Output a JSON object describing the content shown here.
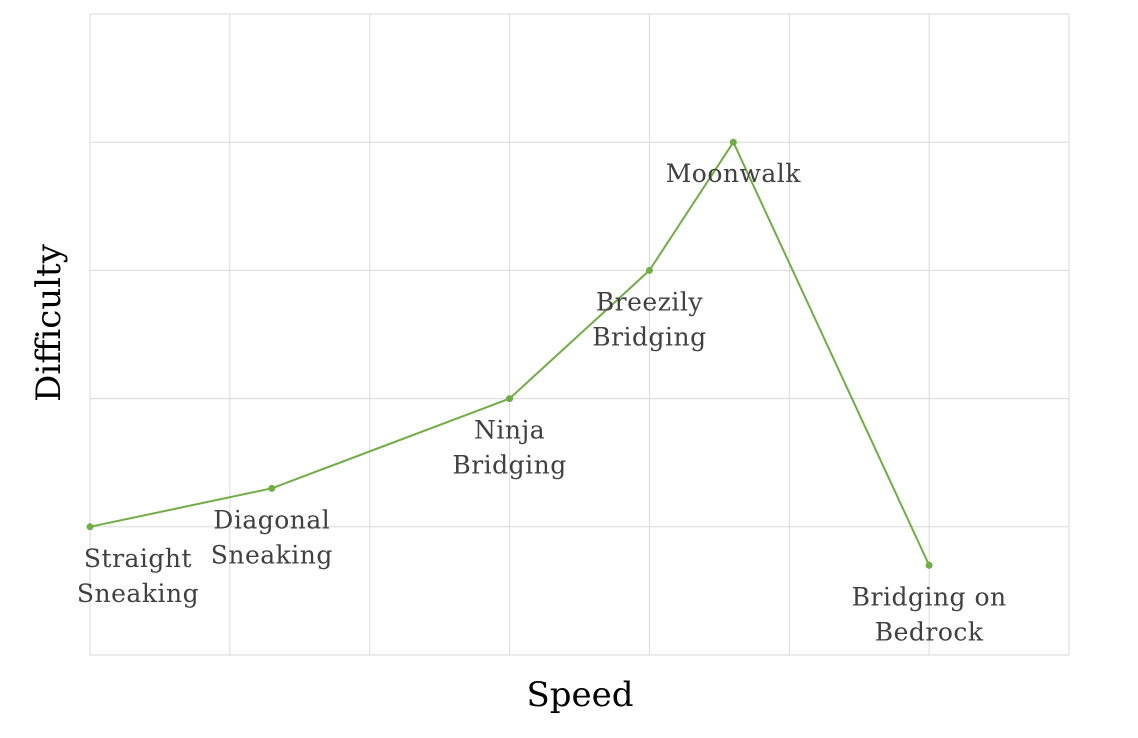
{
  "chart_data": {
    "type": "line",
    "title": "",
    "xlabel": "Speed",
    "ylabel": "Difficulty",
    "xlim": [
      0,
      7
    ],
    "ylim": [
      0,
      5
    ],
    "grid": true,
    "color": "#70ad47",
    "points": [
      {
        "x": 0.0,
        "y": 1.0,
        "label": [
          "Straight",
          "Sneaking"
        ]
      },
      {
        "x": 1.3,
        "y": 1.3,
        "label": [
          "Diagonal",
          "Sneaking"
        ]
      },
      {
        "x": 3.0,
        "y": 2.0,
        "label": [
          "Ninja",
          "Bridging"
        ]
      },
      {
        "x": 4.0,
        "y": 3.0,
        "label": [
          "Breezily",
          "Bridging"
        ]
      },
      {
        "x": 4.6,
        "y": 4.0,
        "label": [
          "Moonwalk"
        ]
      },
      {
        "x": 6.0,
        "y": 0.7,
        "label": [
          "Bridging on",
          "Bedrock"
        ]
      }
    ]
  }
}
